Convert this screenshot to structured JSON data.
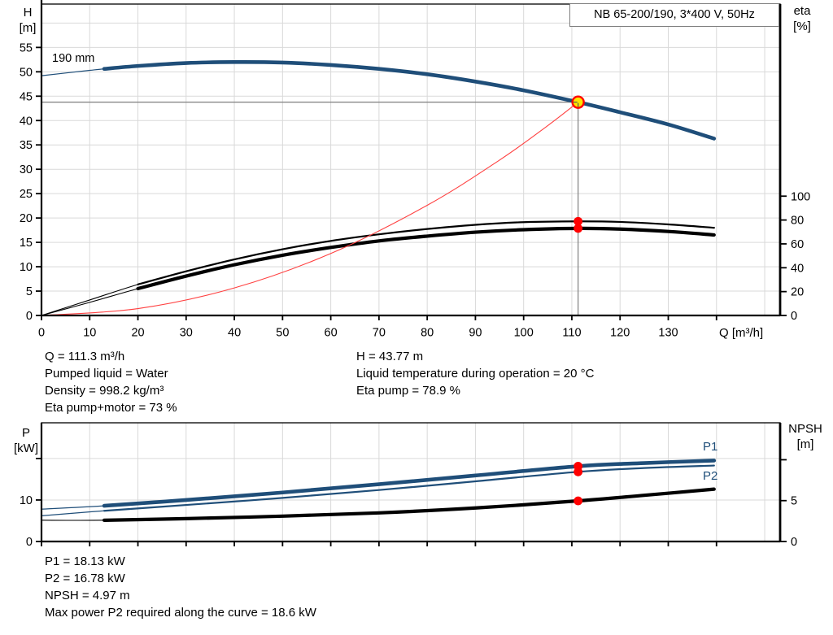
{
  "labels": {
    "title_box": "NB 65-200/190, 3*400 V, 50Hz",
    "h_axis_line1": "H",
    "h_axis_line2": "[m]",
    "eta_axis_line1": "eta",
    "eta_axis_line2": "[%]",
    "p_axis_line1": "P",
    "p_axis_line2": "[kW]",
    "npsh_axis_line1": "NPSH",
    "npsh_axis_line2": "[m]",
    "q_axis": "Q [m³/h]",
    "impeller": "190 mm",
    "p1_curve": "P1",
    "p2_curve": "P2"
  },
  "operating_point_info": {
    "q": "Q = 111.3 m³/h",
    "pumped_liquid": "Pumped liquid = Water",
    "density": "Density = 998.2 kg/m³",
    "eta_pump_motor": "Eta pump+motor = 73 %",
    "h": "H = 43.77 m",
    "liquid_temp": "Liquid temperature during operation = 20 °C",
    "eta_pump": "Eta pump = 78.9 %"
  },
  "power_info": {
    "p1": "P1 = 18.13 kW",
    "p2": "P2 = 16.78 kW",
    "npsh": "NPSH = 4.97 m",
    "max_power": "Max power P2 required along the curve = 18.6 kW"
  },
  "colors": {
    "curve_blue": "#1f4e79",
    "curve_black": "#000000",
    "system_curve_red": "#ff4040",
    "marker_red": "#ff0000",
    "marker_yellow": "#ffe600",
    "grid": "#d9d9d9",
    "crosshair": "#7f7f7f",
    "axis": "#000000",
    "title_border": "#7f7f7f"
  },
  "chart_data": [
    {
      "type": "line",
      "title": "NB 65-200/190, 3*400 V, 50Hz",
      "xlabel": "Q [m³/h]",
      "ylabel_left": "H [m]",
      "ylabel_right": "eta [%]",
      "xlim": [
        0,
        153.2
      ],
      "ylim_left": [
        0,
        63.9
      ],
      "ylim_right": [
        0,
        261
      ],
      "x_ticks": {
        "values": [
          0,
          10,
          20,
          30,
          40,
          50,
          60,
          70,
          80,
          90,
          100,
          110,
          120,
          130,
          140
        ],
        "labels": [
          "0",
          "10",
          "20",
          "30",
          "40",
          "50",
          "60",
          "70",
          "80",
          "90",
          "100",
          "110",
          "120",
          "130",
          ""
        ]
      },
      "yl_ticks": {
        "values": [
          0,
          5,
          10,
          15,
          20,
          25,
          30,
          35,
          40,
          45,
          50,
          55
        ],
        "labels": [
          "0",
          "5",
          "10",
          "15",
          "20",
          "25",
          "30",
          "35",
          "40",
          "45",
          "50",
          "55"
        ]
      },
      "yr_ticks": {
        "values": [
          0,
          20,
          40,
          60,
          80,
          100
        ],
        "labels": [
          "0",
          "20",
          "40",
          "60",
          "80",
          "100"
        ]
      },
      "series": [
        {
          "name": "head-curve-190mm",
          "axis": "left",
          "color": "#1f4e79",
          "thin": 1.2,
          "thick": 4.6,
          "thick_range": [
            13,
            139.5
          ],
          "points": [
            [
              0,
              49.2
            ],
            [
              10,
              50.3
            ],
            [
              13,
              50.6
            ],
            [
              20,
              51.2
            ],
            [
              30,
              51.8
            ],
            [
              40,
              52.0
            ],
            [
              50,
              51.9
            ],
            [
              60,
              51.4
            ],
            [
              70,
              50.6
            ],
            [
              80,
              49.5
            ],
            [
              90,
              48.0
            ],
            [
              100,
              46.2
            ],
            [
              111.3,
              43.77
            ],
            [
              120,
              41.7
            ],
            [
              130,
              39.2
            ],
            [
              139.5,
              36.3
            ]
          ]
        },
        {
          "name": "eta-pump",
          "axis": "right",
          "color": "#000000",
          "thin": 1.1,
          "thick": 2.2,
          "thick_range": [
            13,
            139.5
          ],
          "points": [
            [
              0,
              0
            ],
            [
              10,
              13
            ],
            [
              20,
              26
            ],
            [
              30,
              37
            ],
            [
              40,
              47
            ],
            [
              50,
              55.5
            ],
            [
              60,
              62.5
            ],
            [
              70,
              68
            ],
            [
              80,
              72.5
            ],
            [
              90,
              76
            ],
            [
              100,
              78.2
            ],
            [
              111.3,
              78.9
            ],
            [
              120,
              78.4
            ],
            [
              130,
              76.3
            ],
            [
              139.5,
              73.5
            ]
          ]
        },
        {
          "name": "eta-pump-motor",
          "axis": "right",
          "color": "#000000",
          "thin": 1.1,
          "thick": 4.2,
          "thick_range": [
            13,
            139.5
          ],
          "points": [
            [
              0,
              0
            ],
            [
              10,
              11
            ],
            [
              20,
              22.5
            ],
            [
              30,
              33
            ],
            [
              40,
              42.5
            ],
            [
              50,
              50.5
            ],
            [
              60,
              57
            ],
            [
              70,
              62.5
            ],
            [
              80,
              66.5
            ],
            [
              90,
              69.8
            ],
            [
              100,
              71.9
            ],
            [
              111.3,
              73
            ],
            [
              120,
              72.4
            ],
            [
              130,
              70.4
            ],
            [
              139.5,
              67.5
            ]
          ]
        },
        {
          "name": "system-curve",
          "axis": "left",
          "color": "#ff4040",
          "thin": 1.1,
          "thick": 1.1,
          "thick_range": [
            0,
            0
          ],
          "points": [
            [
              0,
              0
            ],
            [
              20,
              1.41
            ],
            [
              40,
              5.65
            ],
            [
              60,
              12.72
            ],
            [
              80,
              22.61
            ],
            [
              95,
              31.88
            ],
            [
              105,
              38.95
            ],
            [
              111.3,
              43.77
            ]
          ]
        }
      ],
      "crosshair": {
        "q": 111.3,
        "h": 43.77
      },
      "markers": [
        {
          "type": "op",
          "axis": "left",
          "q": 111.3,
          "v": 43.77
        },
        {
          "type": "dot",
          "axis": "right",
          "q": 111.3,
          "v": 78.9
        },
        {
          "type": "dot",
          "axis": "right",
          "q": 111.3,
          "v": 73
        }
      ],
      "grid": true,
      "legend_position": "none"
    },
    {
      "type": "line",
      "title": "",
      "xlabel": "",
      "ylabel_left": "P [kW]",
      "ylabel_right": "NPSH [m]",
      "xlim": [
        0,
        153.2
      ],
      "ylim_left": [
        0,
        28.6
      ],
      "ylim_right": [
        0,
        14.52
      ],
      "x_ticks": {
        "values": [
          0,
          10,
          20,
          30,
          40,
          50,
          60,
          70,
          80,
          90,
          100,
          110,
          120,
          130,
          140
        ],
        "labels": [
          "",
          "",
          "",
          "",
          "",
          "",
          "",
          "",
          "",
          "",
          "",
          "",
          "",
          "",
          ""
        ]
      },
      "yl_ticks": {
        "values": [
          0,
          10,
          20
        ],
        "labels": [
          "0",
          "10",
          ""
        ]
      },
      "yr_ticks": {
        "values": [
          0,
          5,
          10
        ],
        "labels": [
          "0",
          "5",
          ""
        ]
      },
      "series": [
        {
          "name": "p1-power",
          "axis": "left",
          "color": "#1f4e79",
          "thin": 1.2,
          "thick": 4.6,
          "thick_range": [
            13,
            139.5
          ],
          "points": [
            [
              0,
              7.8
            ],
            [
              13,
              8.6
            ],
            [
              30,
              10.0
            ],
            [
              50,
              11.8
            ],
            [
              70,
              13.8
            ],
            [
              90,
              15.9
            ],
            [
              111.3,
              18.13
            ],
            [
              125,
              18.9
            ],
            [
              139.5,
              19.5
            ]
          ]
        },
        {
          "name": "p2-power",
          "axis": "left",
          "color": "#1f4e79",
          "thin": 1.2,
          "thick": 2.2,
          "thick_range": [
            13,
            139.5
          ],
          "points": [
            [
              0,
              6.2
            ],
            [
              13,
              7.4
            ],
            [
              30,
              8.8
            ],
            [
              50,
              10.5
            ],
            [
              70,
              12.4
            ],
            [
              90,
              14.5
            ],
            [
              111.3,
              16.78
            ],
            [
              125,
              17.7
            ],
            [
              139.5,
              18.3
            ]
          ]
        },
        {
          "name": "npsh-curve",
          "axis": "right",
          "color": "#000000",
          "thin": 1.1,
          "thick": 4.2,
          "thick_range": [
            13,
            139.5
          ],
          "points": [
            [
              0,
              2.6
            ],
            [
              13,
              2.6
            ],
            [
              30,
              2.8
            ],
            [
              50,
              3.1
            ],
            [
              70,
              3.5
            ],
            [
              90,
              4.1
            ],
            [
              111.3,
              4.97
            ],
            [
              125,
              5.65
            ],
            [
              139.5,
              6.4
            ]
          ]
        }
      ],
      "crosshair": null,
      "markers": [
        {
          "type": "dot",
          "axis": "left",
          "q": 111.3,
          "v": 18.13
        },
        {
          "type": "dot",
          "axis": "left",
          "q": 111.3,
          "v": 16.78
        },
        {
          "type": "dot",
          "axis": "right",
          "q": 111.3,
          "v": 4.97
        }
      ],
      "grid": true,
      "legend_position": "inline-right"
    }
  ]
}
